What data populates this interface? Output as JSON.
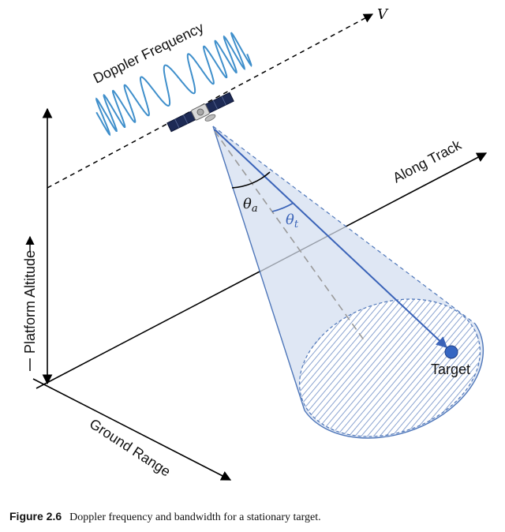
{
  "labels": {
    "velocity": "V",
    "doppler_frequency": "Doppler Frequency",
    "along_track": "Along Track",
    "platform_altitude": "Platform Altitude",
    "ground_range": "Ground Range",
    "theta_a": "θa",
    "theta_t": "θt",
    "target": "Target"
  },
  "caption": {
    "number": "Figure 2.6",
    "text": "Doppler frequency and bandwidth for a stationary target."
  },
  "colors": {
    "beam_fill": "#dbe4f3",
    "beam_edge": "#4e76b9",
    "signal": "#3f8fcb",
    "target": "#3566c2",
    "axis": "#000000",
    "center_line": "#9a9a9a"
  }
}
